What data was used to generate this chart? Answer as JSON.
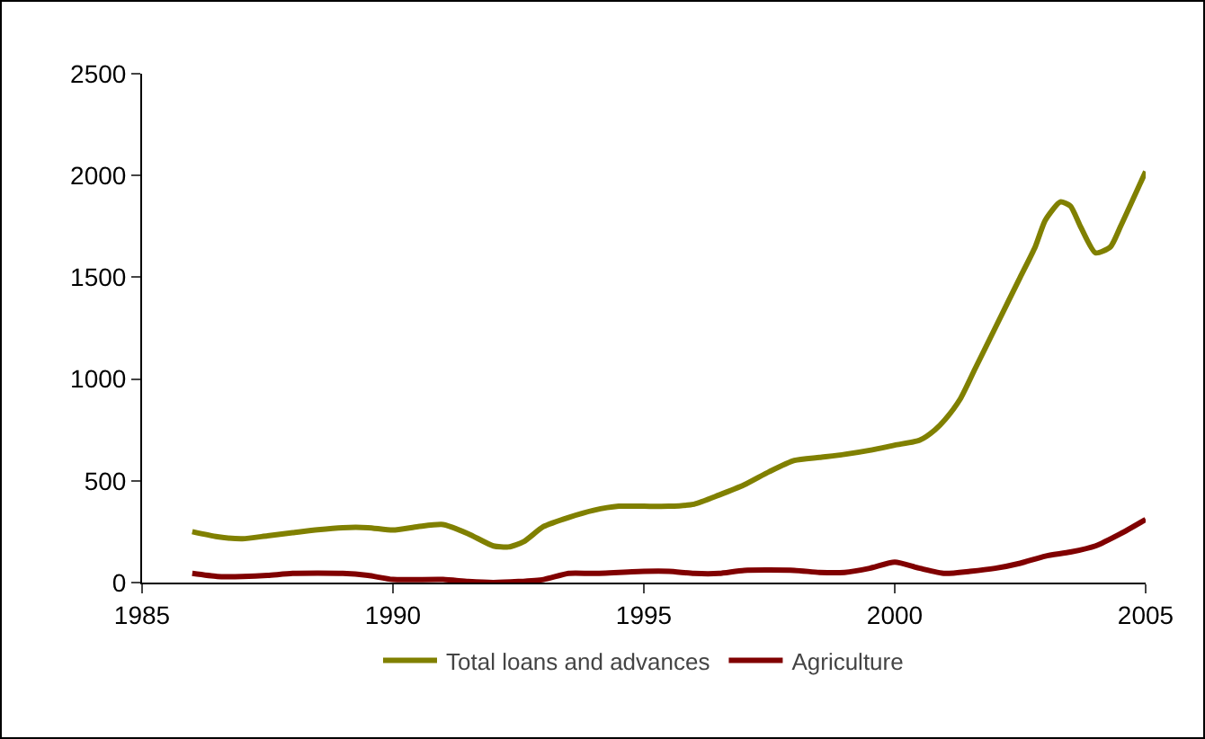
{
  "chart_data": {
    "type": "line",
    "xlim": [
      1985,
      2005
    ],
    "xticks": [
      1985,
      1990,
      1995,
      2000,
      2005
    ],
    "ylim": [
      0,
      2500
    ],
    "yticks": [
      0,
      500,
      1000,
      1500,
      2000,
      2500
    ],
    "grid": false,
    "legend": "bottom",
    "marker": "none",
    "line_style": "solid",
    "series": [
      {
        "name": "Total loans and advances",
        "color": "#808000",
        "x": [
          1986,
          1986.5,
          1987,
          1987.5,
          1988,
          1988.5,
          1989,
          1989.5,
          1990,
          1990.5,
          1991,
          1991.5,
          1992,
          1992.3,
          1992.6,
          1993,
          1993.5,
          1994,
          1994.5,
          1995,
          1995.5,
          1996,
          1996.5,
          1997,
          1997.5,
          1998,
          1998.5,
          1999,
          1999.5,
          2000,
          2000.5,
          2000.8,
          2001,
          2001.3,
          2001.6,
          2002,
          2002.5,
          2002.8,
          2003,
          2003.3,
          2003.5,
          2003.7,
          2004,
          2004.3,
          2004.5,
          2005
        ],
        "values": [
          250,
          225,
          215,
          230,
          245,
          260,
          270,
          270,
          258,
          275,
          285,
          240,
          180,
          175,
          200,
          275,
          320,
          355,
          375,
          375,
          375,
          385,
          430,
          480,
          545,
          600,
          615,
          630,
          650,
          675,
          700,
          750,
          800,
          900,
          1050,
          1250,
          1500,
          1650,
          1780,
          1870,
          1850,
          1750,
          1620,
          1650,
          1750,
          2020
        ]
      },
      {
        "name": "Agriculture",
        "color": "#800000",
        "x": [
          1986,
          1986.5,
          1987,
          1987.5,
          1988,
          1989,
          1989.5,
          1990,
          1991,
          1991.5,
          1992,
          1992.5,
          1993,
          1993.5,
          1994,
          1995,
          1995.5,
          1996,
          1996.5,
          1997,
          1998,
          1998.5,
          1999,
          1999.5,
          2000,
          2000.5,
          2001,
          2001.5,
          2002,
          2002.5,
          2003,
          2003.5,
          2004,
          2004.5,
          2005
        ],
        "values": [
          45,
          30,
          30,
          35,
          45,
          45,
          35,
          15,
          15,
          5,
          0,
          5,
          15,
          45,
          45,
          55,
          55,
          45,
          45,
          60,
          60,
          50,
          50,
          70,
          100,
          70,
          45,
          55,
          70,
          95,
          130,
          150,
          180,
          240,
          310
        ]
      }
    ]
  }
}
